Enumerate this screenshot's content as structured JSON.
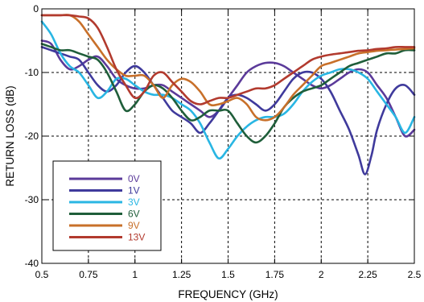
{
  "chart_data": {
    "type": "line",
    "xlabel": "FREQUENCY (GHz)",
    "ylabel": "RETURN LOSS (dB)",
    "xlim": [
      0.5,
      2.5
    ],
    "ylim": [
      -40,
      0
    ],
    "x_ticks": [
      0.5,
      0.75,
      1,
      1.25,
      1.5,
      1.75,
      2,
      2.25,
      2.5
    ],
    "x_tick_labels": [
      "0.5",
      "0.75",
      "1",
      "1.25",
      "1.5",
      "1.75",
      "2",
      "2.25",
      "2.5"
    ],
    "y_ticks": [
      0,
      -10,
      -20,
      -30,
      -40
    ],
    "y_tick_labels": [
      "0",
      "-10",
      "-20",
      "-30",
      "-40"
    ],
    "grid": true,
    "grid_style": "dashed",
    "legend_position": "lower-left",
    "series": [
      {
        "name": "0V",
        "color": "#5B3A9A",
        "points": [
          [
            0.5,
            -5
          ],
          [
            0.55,
            -5.5
          ],
          [
            0.6,
            -8
          ],
          [
            0.65,
            -9.5
          ],
          [
            0.7,
            -9
          ],
          [
            0.75,
            -8
          ],
          [
            0.8,
            -7.5
          ],
          [
            0.85,
            -9
          ],
          [
            0.9,
            -11
          ],
          [
            0.95,
            -12
          ],
          [
            1.0,
            -12.5
          ],
          [
            1.05,
            -12.5
          ],
          [
            1.1,
            -12
          ],
          [
            1.15,
            -12
          ],
          [
            1.2,
            -13
          ],
          [
            1.25,
            -14
          ],
          [
            1.3,
            -15
          ],
          [
            1.35,
            -16
          ],
          [
            1.4,
            -17
          ],
          [
            1.45,
            -16
          ],
          [
            1.5,
            -14
          ],
          [
            1.55,
            -12
          ],
          [
            1.6,
            -10
          ],
          [
            1.65,
            -9
          ],
          [
            1.7,
            -8.5
          ],
          [
            1.75,
            -8.5
          ],
          [
            1.8,
            -9
          ],
          [
            1.85,
            -10
          ],
          [
            1.9,
            -11
          ],
          [
            1.95,
            -12
          ],
          [
            2.0,
            -12.5
          ],
          [
            2.05,
            -12
          ],
          [
            2.1,
            -11
          ],
          [
            2.15,
            -10
          ],
          [
            2.2,
            -9.5
          ],
          [
            2.25,
            -10
          ],
          [
            2.3,
            -12
          ],
          [
            2.35,
            -14
          ],
          [
            2.4,
            -17
          ],
          [
            2.45,
            -20
          ],
          [
            2.5,
            -19
          ]
        ]
      },
      {
        "name": "1V",
        "color": "#3F3A9C",
        "points": [
          [
            0.5,
            -6
          ],
          [
            0.55,
            -6.5
          ],
          [
            0.6,
            -7
          ],
          [
            0.65,
            -7.5
          ],
          [
            0.7,
            -8
          ],
          [
            0.75,
            -10
          ],
          [
            0.8,
            -12
          ],
          [
            0.85,
            -13
          ],
          [
            0.9,
            -12
          ],
          [
            0.95,
            -10
          ],
          [
            1.0,
            -9
          ],
          [
            1.05,
            -10
          ],
          [
            1.1,
            -12
          ],
          [
            1.15,
            -14
          ],
          [
            1.2,
            -16
          ],
          [
            1.25,
            -17
          ],
          [
            1.3,
            -18
          ],
          [
            1.35,
            -19.5
          ],
          [
            1.4,
            -18
          ],
          [
            1.45,
            -16
          ],
          [
            1.5,
            -14
          ],
          [
            1.55,
            -13.5
          ],
          [
            1.6,
            -14
          ],
          [
            1.65,
            -15
          ],
          [
            1.7,
            -16
          ],
          [
            1.75,
            -15
          ],
          [
            1.8,
            -13
          ],
          [
            1.85,
            -11
          ],
          [
            1.9,
            -10
          ],
          [
            1.95,
            -10
          ],
          [
            2.0,
            -11
          ],
          [
            2.05,
            -13
          ],
          [
            2.1,
            -16
          ],
          [
            2.15,
            -19
          ],
          [
            2.2,
            -23
          ],
          [
            2.235,
            -26
          ],
          [
            2.27,
            -23
          ],
          [
            2.3,
            -19
          ],
          [
            2.35,
            -15
          ],
          [
            2.4,
            -12.5
          ],
          [
            2.45,
            -12
          ],
          [
            2.5,
            -13.5
          ]
        ]
      },
      {
        "name": "3V",
        "color": "#29B6E3",
        "points": [
          [
            0.5,
            -2
          ],
          [
            0.55,
            -4
          ],
          [
            0.6,
            -7
          ],
          [
            0.65,
            -9
          ],
          [
            0.7,
            -10
          ],
          [
            0.75,
            -12
          ],
          [
            0.8,
            -14
          ],
          [
            0.85,
            -13
          ],
          [
            0.9,
            -11
          ],
          [
            0.95,
            -11
          ],
          [
            1.0,
            -12
          ],
          [
            1.05,
            -13
          ],
          [
            1.1,
            -13.5
          ],
          [
            1.15,
            -13.5
          ],
          [
            1.2,
            -14
          ],
          [
            1.25,
            -15
          ],
          [
            1.3,
            -16
          ],
          [
            1.35,
            -18
          ],
          [
            1.4,
            -21
          ],
          [
            1.45,
            -23.5
          ],
          [
            1.5,
            -22
          ],
          [
            1.55,
            -20
          ],
          [
            1.6,
            -18.5
          ],
          [
            1.65,
            -17.5
          ],
          [
            1.7,
            -17
          ],
          [
            1.75,
            -17
          ],
          [
            1.8,
            -16.5
          ],
          [
            1.85,
            -15
          ],
          [
            1.9,
            -13
          ],
          [
            1.95,
            -11.5
          ],
          [
            2.0,
            -10.5
          ],
          [
            2.05,
            -10
          ],
          [
            2.1,
            -9.5
          ],
          [
            2.15,
            -9.5
          ],
          [
            2.2,
            -10
          ],
          [
            2.25,
            -11
          ],
          [
            2.3,
            -13
          ],
          [
            2.35,
            -15
          ],
          [
            2.4,
            -17
          ],
          [
            2.45,
            -19.5
          ],
          [
            2.5,
            -17
          ]
        ]
      },
      {
        "name": "6V",
        "color": "#1F5E3A",
        "points": [
          [
            0.5,
            -5.5
          ],
          [
            0.55,
            -6
          ],
          [
            0.6,
            -6.5
          ],
          [
            0.65,
            -6.5
          ],
          [
            0.7,
            -7
          ],
          [
            0.75,
            -7.5
          ],
          [
            0.8,
            -8
          ],
          [
            0.85,
            -10
          ],
          [
            0.9,
            -13
          ],
          [
            0.95,
            -16
          ],
          [
            1.0,
            -15
          ],
          [
            1.05,
            -13
          ],
          [
            1.1,
            -12
          ],
          [
            1.15,
            -12.5
          ],
          [
            1.2,
            -14
          ],
          [
            1.25,
            -16
          ],
          [
            1.3,
            -17.5
          ],
          [
            1.35,
            -17
          ],
          [
            1.4,
            -16
          ],
          [
            1.45,
            -16
          ],
          [
            1.5,
            -16
          ],
          [
            1.55,
            -18
          ],
          [
            1.6,
            -20
          ],
          [
            1.65,
            -21
          ],
          [
            1.7,
            -20
          ],
          [
            1.75,
            -18
          ],
          [
            1.8,
            -15.5
          ],
          [
            1.85,
            -14
          ],
          [
            1.9,
            -13
          ],
          [
            1.95,
            -12.5
          ],
          [
            2.0,
            -12
          ],
          [
            2.05,
            -11
          ],
          [
            2.1,
            -10
          ],
          [
            2.15,
            -9
          ],
          [
            2.2,
            -8.5
          ],
          [
            2.25,
            -8
          ],
          [
            2.3,
            -7.5
          ],
          [
            2.35,
            -7
          ],
          [
            2.4,
            -7
          ],
          [
            2.45,
            -6.5
          ],
          [
            2.5,
            -6.5
          ]
        ]
      },
      {
        "name": "9V",
        "color": "#C8702A",
        "points": [
          [
            0.5,
            -1
          ],
          [
            0.55,
            -1
          ],
          [
            0.6,
            -1
          ],
          [
            0.65,
            -1
          ],
          [
            0.7,
            -2
          ],
          [
            0.75,
            -4
          ],
          [
            0.8,
            -6
          ],
          [
            0.85,
            -8
          ],
          [
            0.9,
            -9.5
          ],
          [
            0.95,
            -10.5
          ],
          [
            1.0,
            -10.5
          ],
          [
            1.05,
            -10.5
          ],
          [
            1.1,
            -12
          ],
          [
            1.15,
            -14
          ],
          [
            1.2,
            -12
          ],
          [
            1.25,
            -11
          ],
          [
            1.3,
            -11.5
          ],
          [
            1.35,
            -13
          ],
          [
            1.4,
            -15
          ],
          [
            1.45,
            -15
          ],
          [
            1.5,
            -14.5
          ],
          [
            1.55,
            -14
          ],
          [
            1.6,
            -15
          ],
          [
            1.65,
            -17
          ],
          [
            1.7,
            -17.5
          ],
          [
            1.75,
            -17
          ],
          [
            1.8,
            -15.5
          ],
          [
            1.85,
            -13.5
          ],
          [
            1.9,
            -12
          ],
          [
            1.95,
            -10.5
          ],
          [
            2.0,
            -9
          ],
          [
            2.05,
            -8.5
          ],
          [
            2.1,
            -8
          ],
          [
            2.15,
            -7.5
          ],
          [
            2.2,
            -7
          ],
          [
            2.25,
            -6.8
          ],
          [
            2.3,
            -6.6
          ],
          [
            2.35,
            -6.5
          ],
          [
            2.4,
            -6.4
          ],
          [
            2.45,
            -6.3
          ],
          [
            2.5,
            -6.2
          ]
        ]
      },
      {
        "name": "13V",
        "color": "#B23A2E",
        "points": [
          [
            0.5,
            -1
          ],
          [
            0.55,
            -1
          ],
          [
            0.6,
            -1
          ],
          [
            0.65,
            -1
          ],
          [
            0.7,
            -1.2
          ],
          [
            0.75,
            -1.5
          ],
          [
            0.8,
            -3
          ],
          [
            0.85,
            -6
          ],
          [
            0.9,
            -9.5
          ],
          [
            0.95,
            -12
          ],
          [
            1.0,
            -14
          ],
          [
            1.05,
            -13
          ],
          [
            1.1,
            -10.5
          ],
          [
            1.15,
            -10
          ],
          [
            1.2,
            -11.5
          ],
          [
            1.25,
            -13
          ],
          [
            1.3,
            -14.5
          ],
          [
            1.35,
            -15
          ],
          [
            1.4,
            -14.5
          ],
          [
            1.45,
            -14
          ],
          [
            1.5,
            -14
          ],
          [
            1.55,
            -13.5
          ],
          [
            1.6,
            -13
          ],
          [
            1.65,
            -12.5
          ],
          [
            1.7,
            -12.5
          ],
          [
            1.75,
            -12
          ],
          [
            1.8,
            -11
          ],
          [
            1.85,
            -10
          ],
          [
            1.9,
            -9
          ],
          [
            1.95,
            -8
          ],
          [
            2.0,
            -7.5
          ],
          [
            2.05,
            -7.2
          ],
          [
            2.1,
            -7
          ],
          [
            2.15,
            -6.8
          ],
          [
            2.2,
            -6.6
          ],
          [
            2.25,
            -6.5
          ],
          [
            2.3,
            -6.3
          ],
          [
            2.35,
            -6.2
          ],
          [
            2.4,
            -6
          ],
          [
            2.45,
            -6
          ],
          [
            2.5,
            -6
          ]
        ]
      }
    ]
  }
}
